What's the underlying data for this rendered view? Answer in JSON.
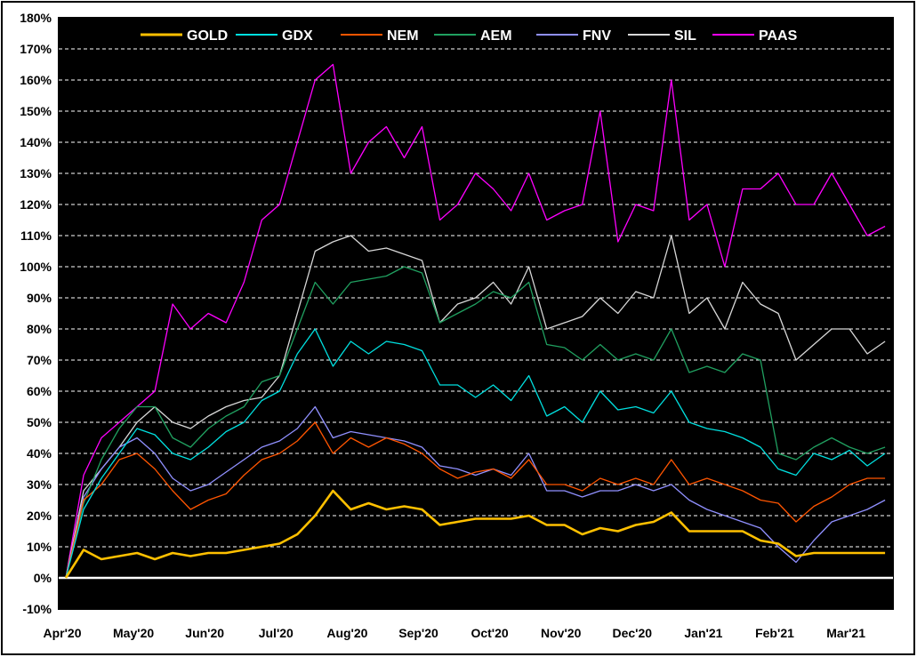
{
  "chart_data": {
    "type": "line",
    "title": "",
    "xlabel": "",
    "ylabel": "",
    "ylim": [
      -10,
      180
    ],
    "y_tick_labels": [
      "-10%",
      "0%",
      "10%",
      "20%",
      "30%",
      "40%",
      "50%",
      "60%",
      "70%",
      "80%",
      "90%",
      "100%",
      "110%",
      "120%",
      "130%",
      "140%",
      "150%",
      "160%",
      "170%",
      "180%"
    ],
    "x_tick_labels": [
      "Apr'20",
      "May'20",
      "Jun'20",
      "Jul'20",
      "Aug'20",
      "Sep'20",
      "Oct'20",
      "Nov'20",
      "Dec'20",
      "Jan'21",
      "Feb'21",
      "Mar'21"
    ],
    "x_tick_positions": [
      0,
      1,
      2,
      3,
      4,
      5,
      6,
      7,
      8,
      9,
      10,
      11
    ],
    "xlim": [
      0,
      11.6
    ],
    "grid": true,
    "legend_placement": "top",
    "x": [
      0.0,
      0.25,
      0.5,
      0.75,
      1.0,
      1.25,
      1.5,
      1.75,
      2.0,
      2.25,
      2.5,
      2.75,
      3.0,
      3.25,
      3.5,
      3.75,
      4.0,
      4.25,
      4.5,
      4.75,
      5.0,
      5.25,
      5.5,
      5.75,
      6.0,
      6.25,
      6.5,
      6.75,
      7.0,
      7.25,
      7.5,
      7.75,
      8.0,
      8.25,
      8.5,
      8.75,
      9.0,
      9.25,
      9.5,
      9.75,
      10.0,
      10.25,
      10.5,
      10.75,
      11.0,
      11.25,
      11.5
    ],
    "series": [
      {
        "name": "GOLD",
        "color": "#ffc000",
        "values": [
          0,
          9,
          6,
          7,
          8,
          6,
          8,
          7,
          8,
          8,
          9,
          10,
          11,
          14,
          20,
          28,
          22,
          24,
          22,
          23,
          22,
          17,
          18,
          19,
          19,
          19,
          20,
          17,
          17,
          14,
          16,
          15,
          17,
          18,
          21,
          15,
          15,
          15,
          15,
          12,
          11,
          7,
          8,
          8,
          8,
          8,
          8
        ]
      },
      {
        "name": "GDX",
        "color": "#00e0e0",
        "values": [
          0,
          22,
          32,
          40,
          48,
          46,
          40,
          38,
          42,
          47,
          50,
          57,
          60,
          72,
          80,
          68,
          76,
          72,
          76,
          75,
          73,
          62,
          62,
          58,
          62,
          57,
          65,
          52,
          55,
          50,
          60,
          54,
          55,
          53,
          60,
          50,
          48,
          47,
          45,
          42,
          35,
          33,
          40,
          38,
          41,
          36,
          40
        ]
      },
      {
        "name": "NEM",
        "color": "#ff5500",
        "values": [
          0,
          25,
          30,
          38,
          40,
          35,
          28,
          22,
          25,
          27,
          33,
          38,
          40,
          44,
          50,
          40,
          45,
          42,
          45,
          43,
          40,
          35,
          32,
          34,
          35,
          32,
          38,
          30,
          30,
          28,
          32,
          30,
          32,
          30,
          38,
          30,
          32,
          30,
          28,
          25,
          24,
          18,
          23,
          26,
          30,
          32,
          32
        ]
      },
      {
        "name": "AEM",
        "color": "#20a060",
        "values": [
          0,
          24,
          38,
          48,
          55,
          55,
          45,
          42,
          48,
          52,
          55,
          63,
          65,
          80,
          95,
          88,
          95,
          96,
          97,
          100,
          98,
          82,
          85,
          88,
          92,
          90,
          95,
          75,
          74,
          70,
          75,
          70,
          72,
          70,
          80,
          66,
          68,
          66,
          72,
          70,
          40,
          38,
          42,
          45,
          42,
          40,
          42
        ]
      },
      {
        "name": "FNV",
        "color": "#9090ff",
        "values": [
          0,
          26,
          35,
          42,
          45,
          40,
          32,
          28,
          30,
          34,
          38,
          42,
          44,
          48,
          55,
          45,
          47,
          46,
          45,
          44,
          42,
          36,
          35,
          33,
          35,
          33,
          40,
          28,
          28,
          26,
          28,
          28,
          30,
          28,
          30,
          25,
          22,
          20,
          18,
          16,
          10,
          5,
          12,
          18,
          20,
          22,
          25
        ]
      },
      {
        "name": "SIL",
        "color": "#d8d8d8",
        "values": [
          0,
          28,
          35,
          42,
          50,
          55,
          50,
          48,
          52,
          55,
          57,
          58,
          65,
          85,
          105,
          108,
          110,
          105,
          106,
          104,
          102,
          82,
          88,
          90,
          95,
          88,
          100,
          80,
          82,
          84,
          90,
          85,
          92,
          90,
          110,
          85,
          90,
          80,
          95,
          88,
          85,
          70,
          75,
          80,
          80,
          72,
          76
        ]
      },
      {
        "name": "PAAS",
        "color": "#ff00ff",
        "values": [
          0,
          33,
          45,
          50,
          55,
          60,
          88,
          80,
          85,
          82,
          95,
          115,
          120,
          140,
          160,
          165,
          130,
          140,
          145,
          135,
          145,
          115,
          120,
          130,
          125,
          118,
          130,
          115,
          118,
          120,
          150,
          108,
          120,
          118,
          160,
          115,
          120,
          100,
          125,
          125,
          130,
          120,
          120,
          130,
          120,
          110,
          113
        ]
      }
    ]
  }
}
